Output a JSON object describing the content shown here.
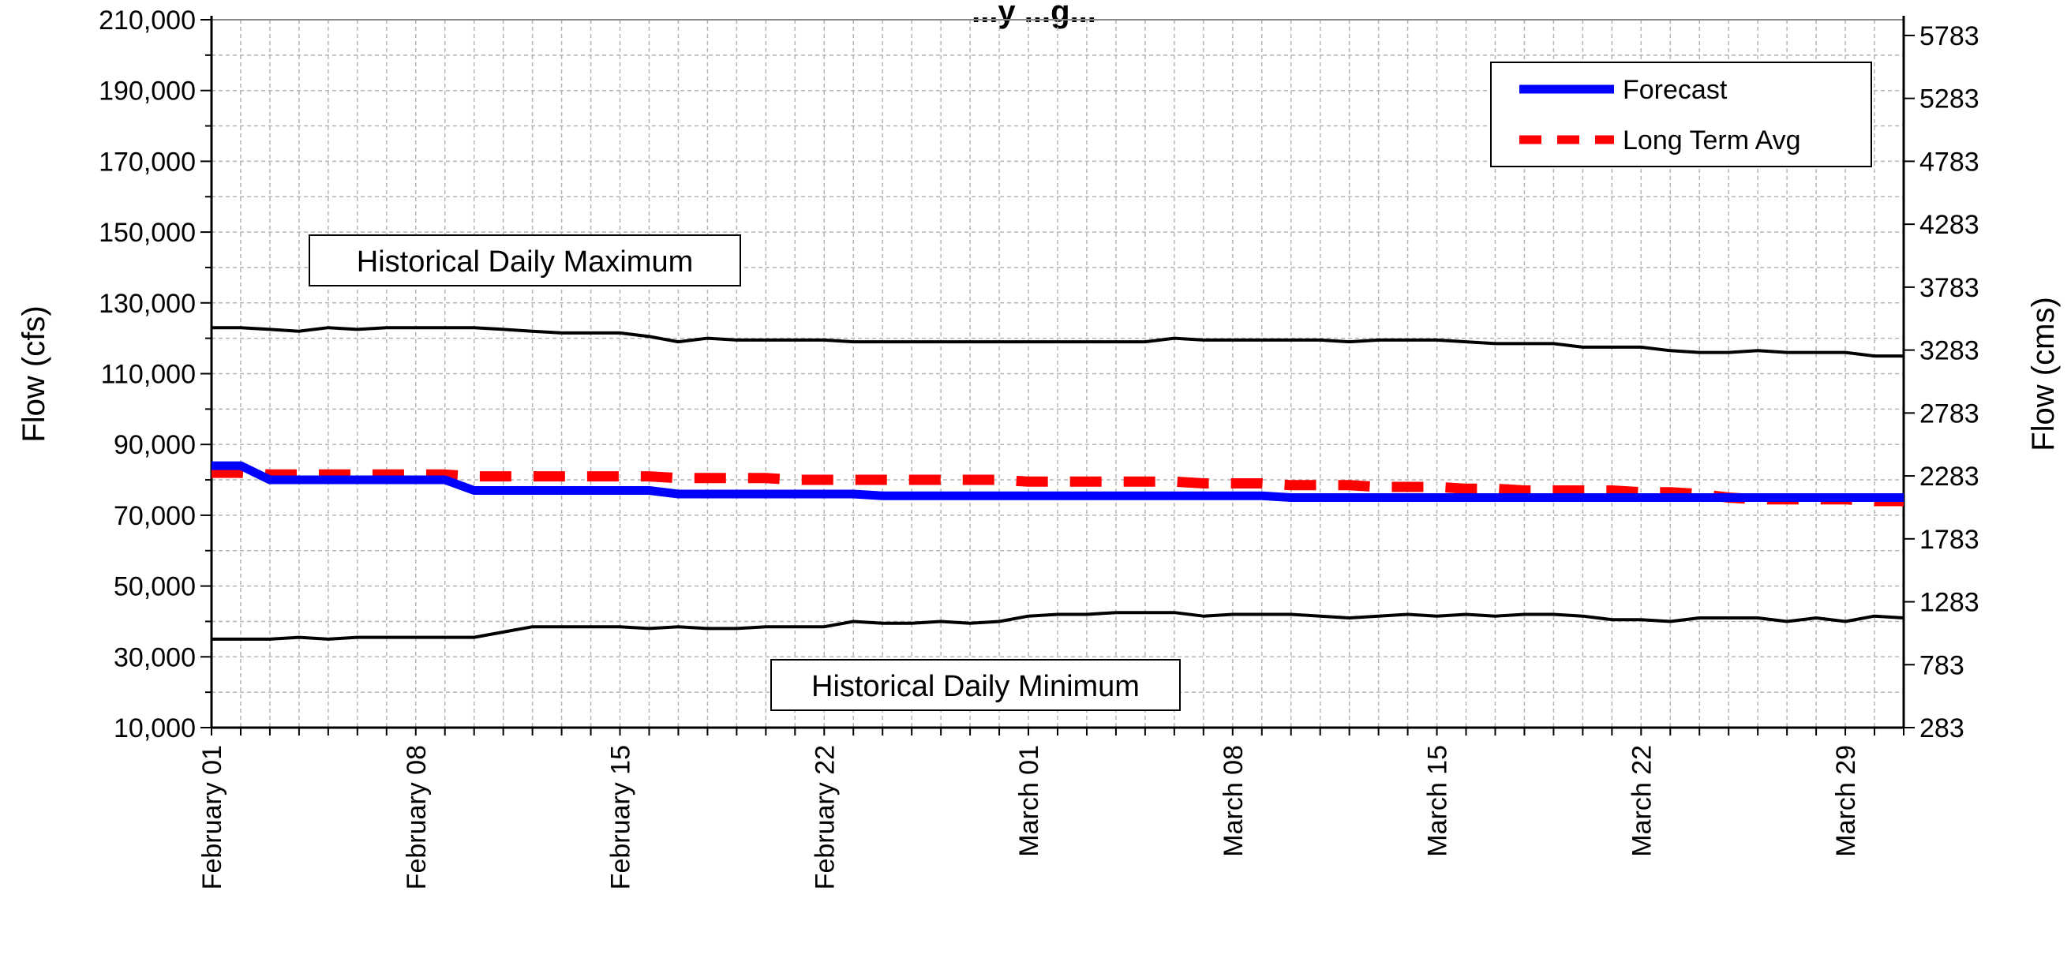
{
  "chart_data": {
    "type": "line",
    "title": "...y ...g...",
    "ylabel": "Flow (cfs)",
    "y2label": "Flow (cms)",
    "ylim": [
      10000,
      210000
    ],
    "yticks": [
      10000,
      30000,
      50000,
      70000,
      90000,
      110000,
      130000,
      150000,
      170000,
      190000,
      210000
    ],
    "ytick_labels": [
      "10,000",
      "30,000",
      "50,000",
      "70,000",
      "90,000",
      "110,000",
      "130,000",
      "150,000",
      "170,000",
      "190,000",
      "210,000"
    ],
    "y2ticks": [
      283,
      783,
      1283,
      1783,
      2283,
      2783,
      3283,
      3783,
      4283,
      4783,
      5283,
      5783
    ],
    "xlim": [
      "February 01",
      "March 31"
    ],
    "xtick_labels": [
      "February 01",
      "February 08",
      "February 15",
      "February 22",
      "March 01",
      "March 08",
      "March 15",
      "March 22",
      "March 29"
    ],
    "grid": true,
    "legend_position": "top-right",
    "annotations": [
      "Historical Daily Maximum",
      "Historical Daily Minimum"
    ],
    "x": [
      "February 01",
      "February 02",
      "February 03",
      "February 04",
      "February 05",
      "February 06",
      "February 07",
      "February 08",
      "February 09",
      "February 10",
      "February 11",
      "February 12",
      "February 13",
      "February 14",
      "February 15",
      "February 16",
      "February 17",
      "February 18",
      "February 19",
      "February 20",
      "February 21",
      "February 22",
      "February 23",
      "February 24",
      "February 25",
      "February 26",
      "February 27",
      "February 28",
      "March 01",
      "March 02",
      "March 03",
      "March 04",
      "March 05",
      "March 06",
      "March 07",
      "March 08",
      "March 09",
      "March 10",
      "March 11",
      "March 12",
      "March 13",
      "March 14",
      "March 15",
      "March 16",
      "March 17",
      "March 18",
      "March 19",
      "March 20",
      "March 21",
      "March 22",
      "March 23",
      "March 24",
      "March 25",
      "March 26",
      "March 27",
      "March 28",
      "March 29",
      "March 30",
      "March 31"
    ],
    "series": [
      {
        "name": "Forecast",
        "color": "#0000ff",
        "style": "solid",
        "values": [
          84000,
          84000,
          80000,
          80000,
          80000,
          80000,
          80000,
          80000,
          80000,
          77000,
          77000,
          77000,
          77000,
          77000,
          77000,
          77000,
          76000,
          76000,
          76000,
          76000,
          76000,
          76000,
          76000,
          75500,
          75500,
          75500,
          75500,
          75500,
          75500,
          75500,
          75500,
          75500,
          75500,
          75500,
          75500,
          75500,
          75500,
          75000,
          75000,
          75000,
          75000,
          75000,
          75000,
          75000,
          75000,
          75000,
          75000,
          75000,
          75000,
          75000,
          75000,
          75000,
          75000,
          75000,
          75000,
          75000,
          75000,
          75000,
          75000
        ]
      },
      {
        "name": "Long Term Avg",
        "color": "#ff0000",
        "style": "dashed",
        "values": [
          82000,
          82000,
          81500,
          81500,
          81500,
          81500,
          81500,
          81500,
          81500,
          81000,
          81000,
          81000,
          81000,
          81000,
          81000,
          81000,
          80500,
          80500,
          80500,
          80500,
          80000,
          80000,
          80000,
          80000,
          80000,
          80000,
          80000,
          80000,
          79500,
          79500,
          79500,
          79500,
          79500,
          79500,
          79000,
          79000,
          79000,
          78500,
          78500,
          78500,
          78000,
          78000,
          78000,
          77500,
          77500,
          77000,
          77000,
          77000,
          77000,
          76500,
          76500,
          76000,
          75000,
          74500,
          74500,
          74500,
          74500,
          74000,
          74000
        ]
      },
      {
        "name": "",
        "color": "#000000",
        "style": "solid",
        "role": "Historical Daily Maximum",
        "values": [
          123000,
          123000,
          122500,
          122000,
          123000,
          122500,
          123000,
          123000,
          123000,
          123000,
          122500,
          122000,
          121500,
          121500,
          121500,
          120500,
          119000,
          120000,
          119500,
          119500,
          119500,
          119500,
          119000,
          119000,
          119000,
          119000,
          119000,
          119000,
          119000,
          119000,
          119000,
          119000,
          119000,
          120000,
          119500,
          119500,
          119500,
          119500,
          119500,
          119000,
          119500,
          119500,
          119500,
          119000,
          118500,
          118500,
          118500,
          117500,
          117500,
          117500,
          116500,
          116000,
          116000,
          116500,
          116000,
          116000,
          116000,
          115000,
          115000
        ]
      },
      {
        "name": "",
        "color": "#000000",
        "style": "solid",
        "role": "Historical Daily Minimum",
        "values": [
          35000,
          35000,
          35000,
          35500,
          35000,
          35500,
          35500,
          35500,
          35500,
          35500,
          37000,
          38500,
          38500,
          38500,
          38500,
          38000,
          38500,
          38000,
          38000,
          38500,
          38500,
          38500,
          40000,
          39500,
          39500,
          40000,
          39500,
          40000,
          41500,
          42000,
          42000,
          42500,
          42500,
          42500,
          41500,
          42000,
          42000,
          42000,
          41500,
          41000,
          41500,
          42000,
          41500,
          42000,
          41500,
          42000,
          42000,
          41500,
          40500,
          40500,
          40000,
          41000,
          41000,
          41000,
          40000,
          41000,
          40000,
          41500,
          41000
        ]
      }
    ]
  }
}
